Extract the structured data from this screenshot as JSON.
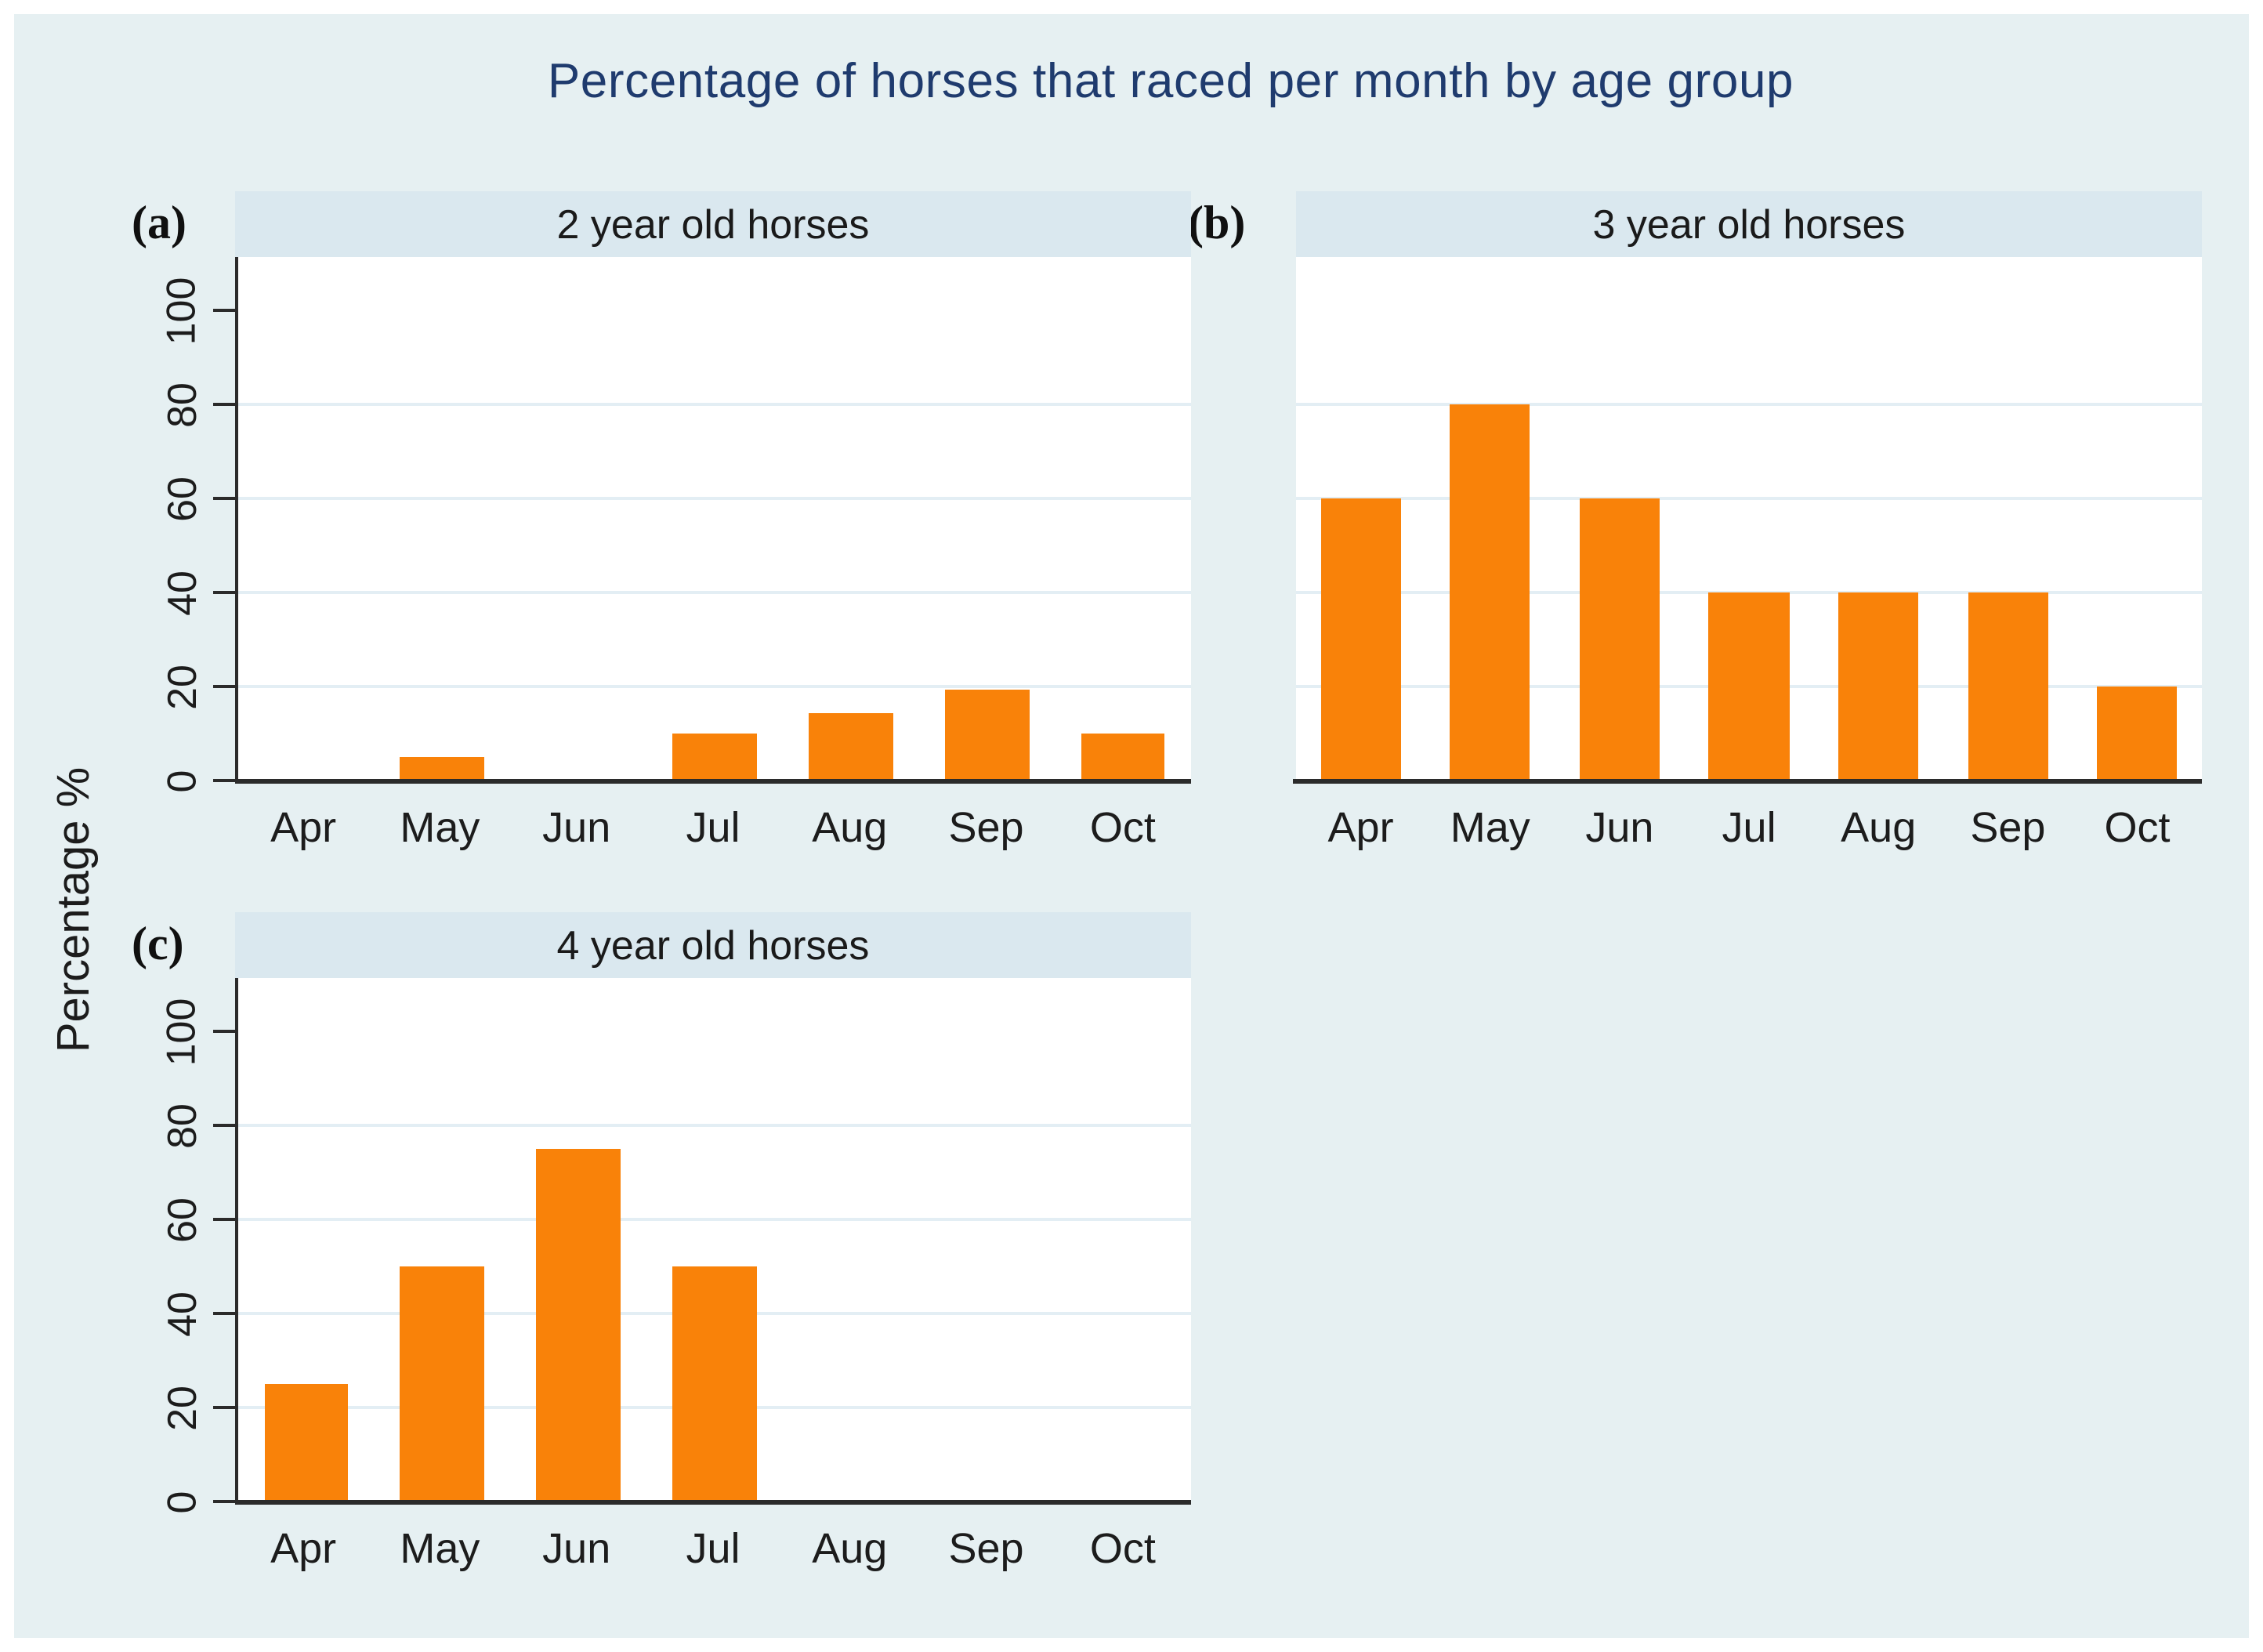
{
  "figure": {
    "title": "Percentage of horses that raced per month by age group",
    "y_axis_title": "Percentage %"
  },
  "colors": {
    "bar": "#F98209",
    "canvas_background": "#E6F0F2",
    "panel_band_background": "#DAE8EF",
    "plot_background": "#FFFFFF",
    "gridline": "#E3EEF4",
    "axis": "#2B2B2B",
    "title_text": "#1F3B6E",
    "tick_text": "#1C1C1C"
  },
  "chart_data": [
    {
      "type": "bar",
      "panel_label": "(a)",
      "title": "2 year old horses",
      "categories": [
        "Apr",
        "May",
        "Jun",
        "Jul",
        "Aug",
        "Sep",
        "Oct"
      ],
      "values": [
        0,
        5,
        0,
        10,
        14.5,
        19.5,
        10
      ],
      "ylabel": "Percentage %",
      "xlabel": "",
      "yticks": [
        0,
        20,
        40,
        60,
        80,
        100
      ],
      "gridlines": [
        20,
        40,
        60,
        80
      ],
      "ylim": [
        0,
        111
      ],
      "grid": true,
      "legend": "none",
      "show_y_tick_labels": true
    },
    {
      "type": "bar",
      "panel_label": "(b)",
      "title": "3 year old horses",
      "categories": [
        "Apr",
        "May",
        "Jun",
        "Jul",
        "Aug",
        "Sep",
        "Oct"
      ],
      "values": [
        60,
        80,
        60,
        40,
        40,
        40,
        20
      ],
      "ylabel": "Percentage %",
      "xlabel": "",
      "yticks": [
        0,
        20,
        40,
        60,
        80,
        100
      ],
      "gridlines": [
        20,
        40,
        60,
        80
      ],
      "ylim": [
        0,
        111
      ],
      "grid": true,
      "legend": "none",
      "show_y_tick_labels": false
    },
    {
      "type": "bar",
      "panel_label": "(c)",
      "title": "4 year old horses",
      "categories": [
        "Apr",
        "May",
        "Jun",
        "Jul",
        "Aug",
        "Sep",
        "Oct"
      ],
      "values": [
        25,
        50,
        75,
        50,
        0,
        0,
        0
      ],
      "ylabel": "Percentage %",
      "xlabel": "",
      "yticks": [
        0,
        20,
        40,
        60,
        80,
        100
      ],
      "gridlines": [
        20,
        40,
        60,
        80
      ],
      "ylim": [
        0,
        111
      ],
      "grid": true,
      "legend": "none",
      "show_y_tick_labels": true
    }
  ]
}
